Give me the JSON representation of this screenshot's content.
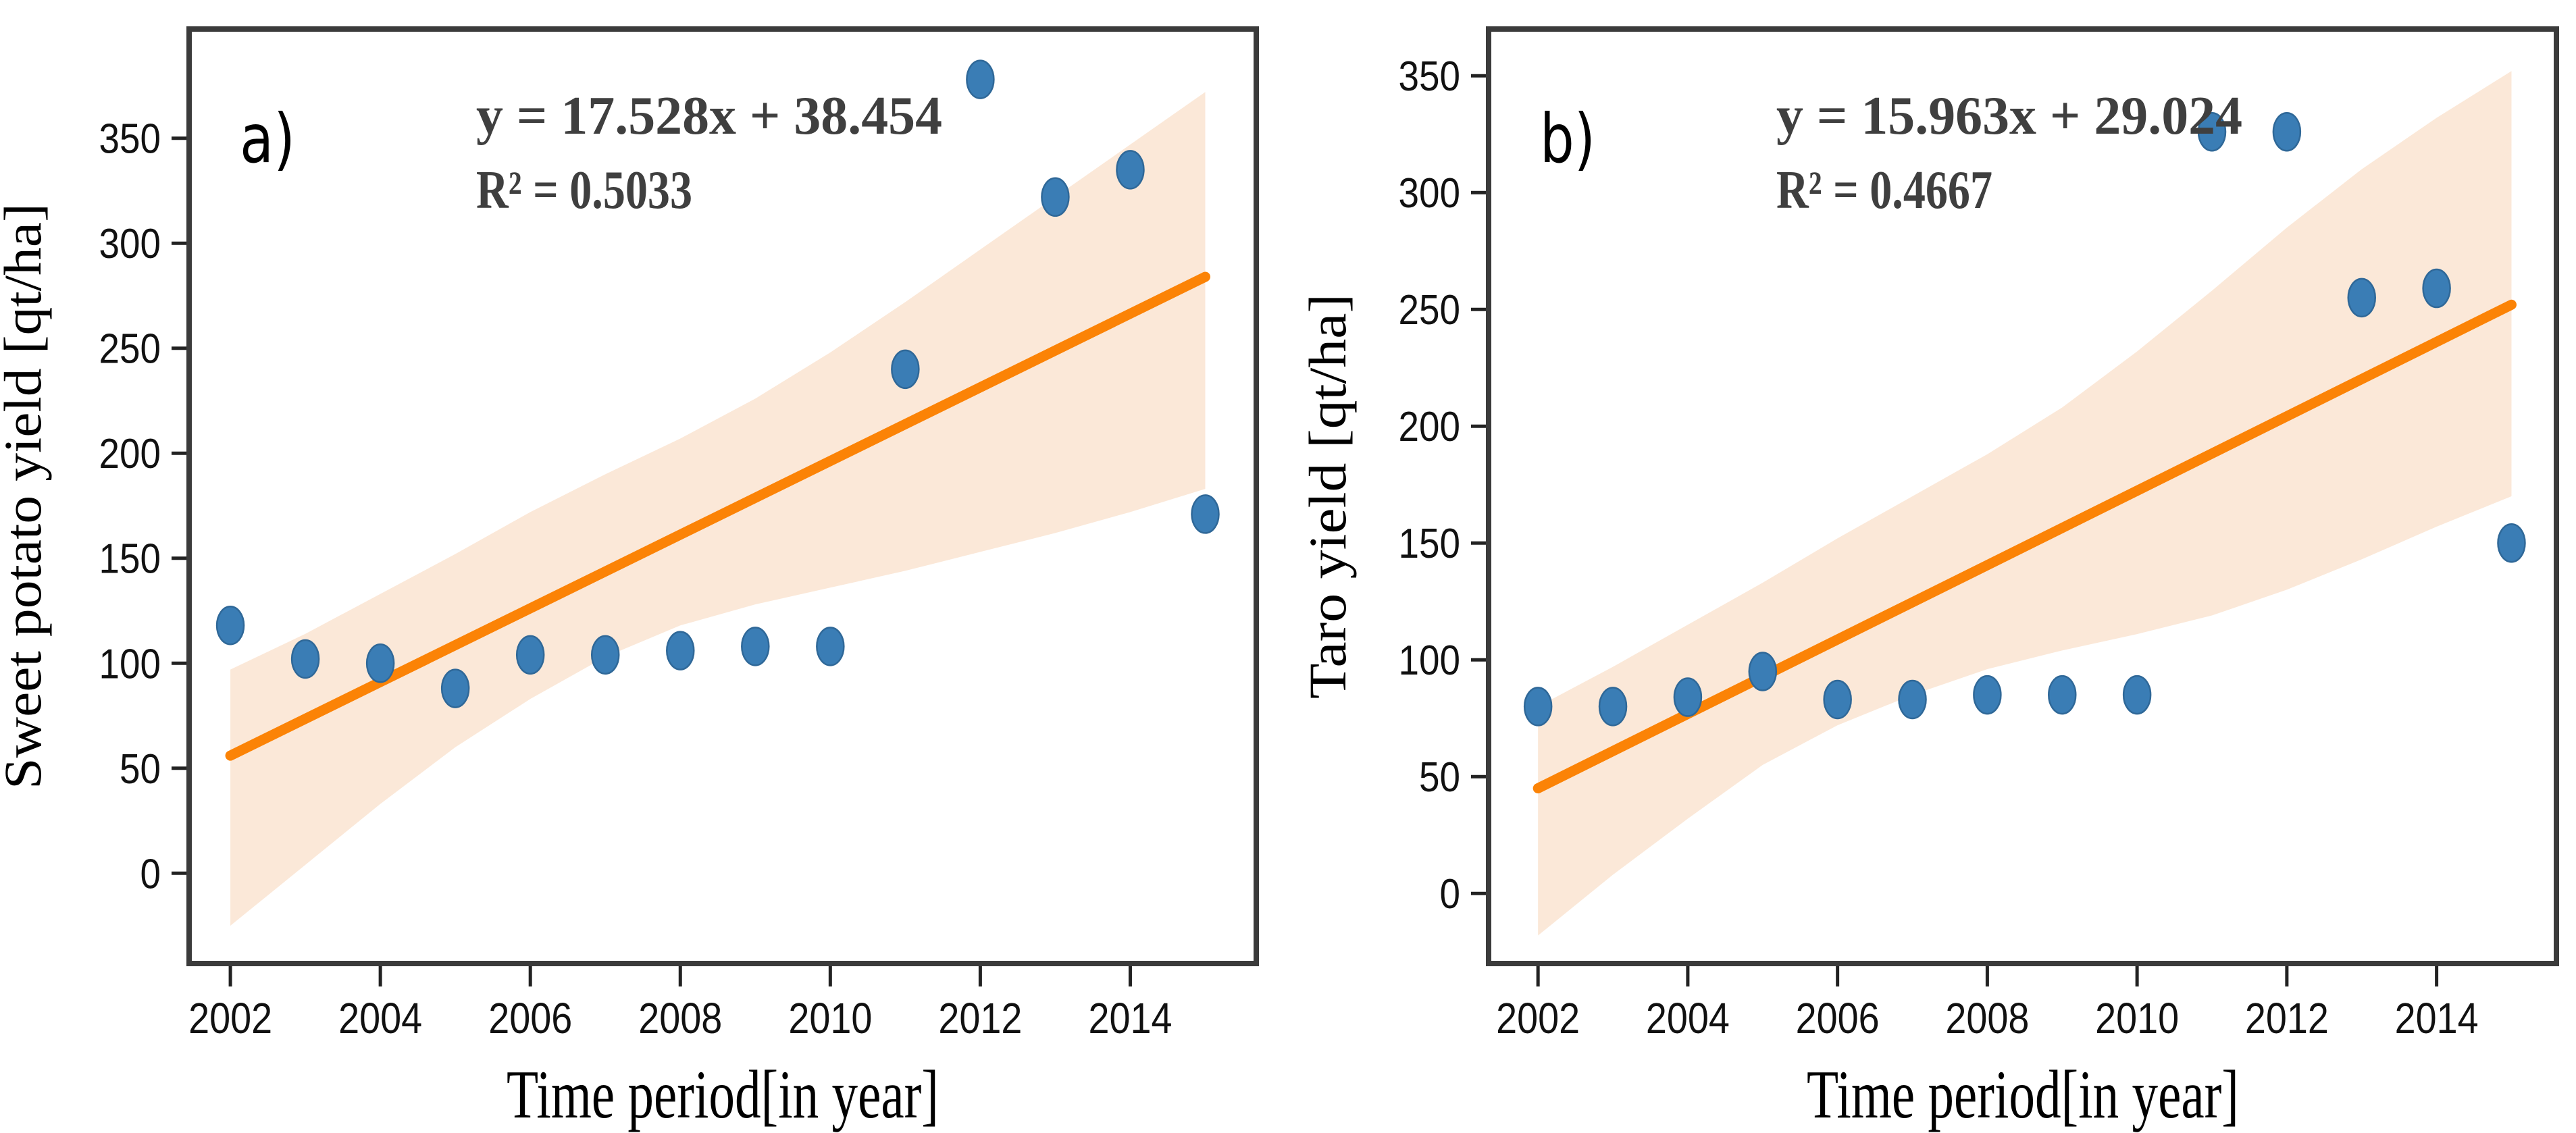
{
  "figure": {
    "background": "#ffffff",
    "colors": {
      "scatter_fill": "#3a7db5",
      "scatter_edge": "#2f6898",
      "regression_line": "#fb8306",
      "confidence_band": "#fbe8d8",
      "spine": "#3b3b3b",
      "tick_mark": "#222222",
      "tick_label": "#111111",
      "axis_title": "#000000",
      "equation_text": "#3f3f3f",
      "panel_letter": "#000000"
    }
  },
  "chart_data": [
    {
      "type": "scatter",
      "panel_label": "a)",
      "xlabel": "Time period[in year]",
      "ylabel": "Sweet potato yield [qt/ha]",
      "equation": "y = 17.528x + 38.454",
      "r_squared": "R² = 0.5033",
      "x": [
        2002,
        2003,
        2004,
        2005,
        2006,
        2007,
        2008,
        2009,
        2010,
        2011,
        2012,
        2013,
        2014,
        2015
      ],
      "values": [
        118,
        102,
        100,
        88,
        104,
        104,
        106,
        108,
        108,
        240,
        378,
        322,
        335,
        171
      ],
      "regression_line": {
        "x": [
          2002,
          2015
        ],
        "y": [
          56,
          284
        ]
      },
      "confidence_band": {
        "x": [
          2002,
          2003,
          2004,
          2005,
          2006,
          2007,
          2008,
          2009,
          2010,
          2011,
          2012,
          2013,
          2014,
          2015
        ],
        "upper": [
          97,
          114,
          133,
          152,
          172,
          190,
          207,
          226,
          248,
          272,
          297,
          322,
          347,
          372
        ],
        "lower": [
          -25,
          4,
          33,
          60,
          83,
          103,
          118,
          128,
          136,
          144,
          153,
          162,
          172,
          183
        ]
      },
      "xticks": [
        2002,
        2004,
        2006,
        2008,
        2010,
        2012,
        2014
      ],
      "yticks": [
        0,
        50,
        100,
        150,
        200,
        250,
        300,
        350
      ],
      "xlim": [
        2001.45,
        2015.68
      ],
      "ylim": [
        -43,
        402
      ],
      "grid": false,
      "legend": "none",
      "marker": "ellipse"
    },
    {
      "type": "scatter",
      "panel_label": "b)",
      "xlabel": "Time period[in year]",
      "ylabel": "Taro yield [qt/ha]",
      "equation": "y = 15.963x + 29.024",
      "r_squared": "R² = 0.4667",
      "x": [
        2002,
        2003,
        2004,
        2005,
        2006,
        2007,
        2008,
        2009,
        2010,
        2011,
        2012,
        2013,
        2014,
        2015
      ],
      "values": [
        80,
        80,
        84,
        95,
        83,
        83,
        85,
        85,
        85,
        326,
        326,
        255,
        259,
        150
      ],
      "regression_line": {
        "x": [
          2002,
          2015
        ],
        "y": [
          45,
          252
        ]
      },
      "confidence_band": {
        "x": [
          2002,
          2003,
          2004,
          2005,
          2006,
          2007,
          2008,
          2009,
          2010,
          2011,
          2012,
          2013,
          2014,
          2015
        ],
        "upper": [
          80,
          97,
          115,
          133,
          152,
          170,
          188,
          208,
          232,
          258,
          285,
          310,
          332,
          352
        ],
        "lower": [
          -18,
          8,
          32,
          55,
          72,
          85,
          96,
          104,
          111,
          119,
          130,
          143,
          157,
          170
        ]
      },
      "xticks": [
        2002,
        2004,
        2006,
        2008,
        2010,
        2012,
        2014
      ],
      "yticks": [
        0,
        50,
        100,
        150,
        200,
        250,
        300,
        350
      ],
      "xlim": [
        2001.34,
        2015.6
      ],
      "ylim": [
        -30,
        370
      ],
      "grid": false,
      "legend": "none",
      "marker": "ellipse"
    }
  ]
}
